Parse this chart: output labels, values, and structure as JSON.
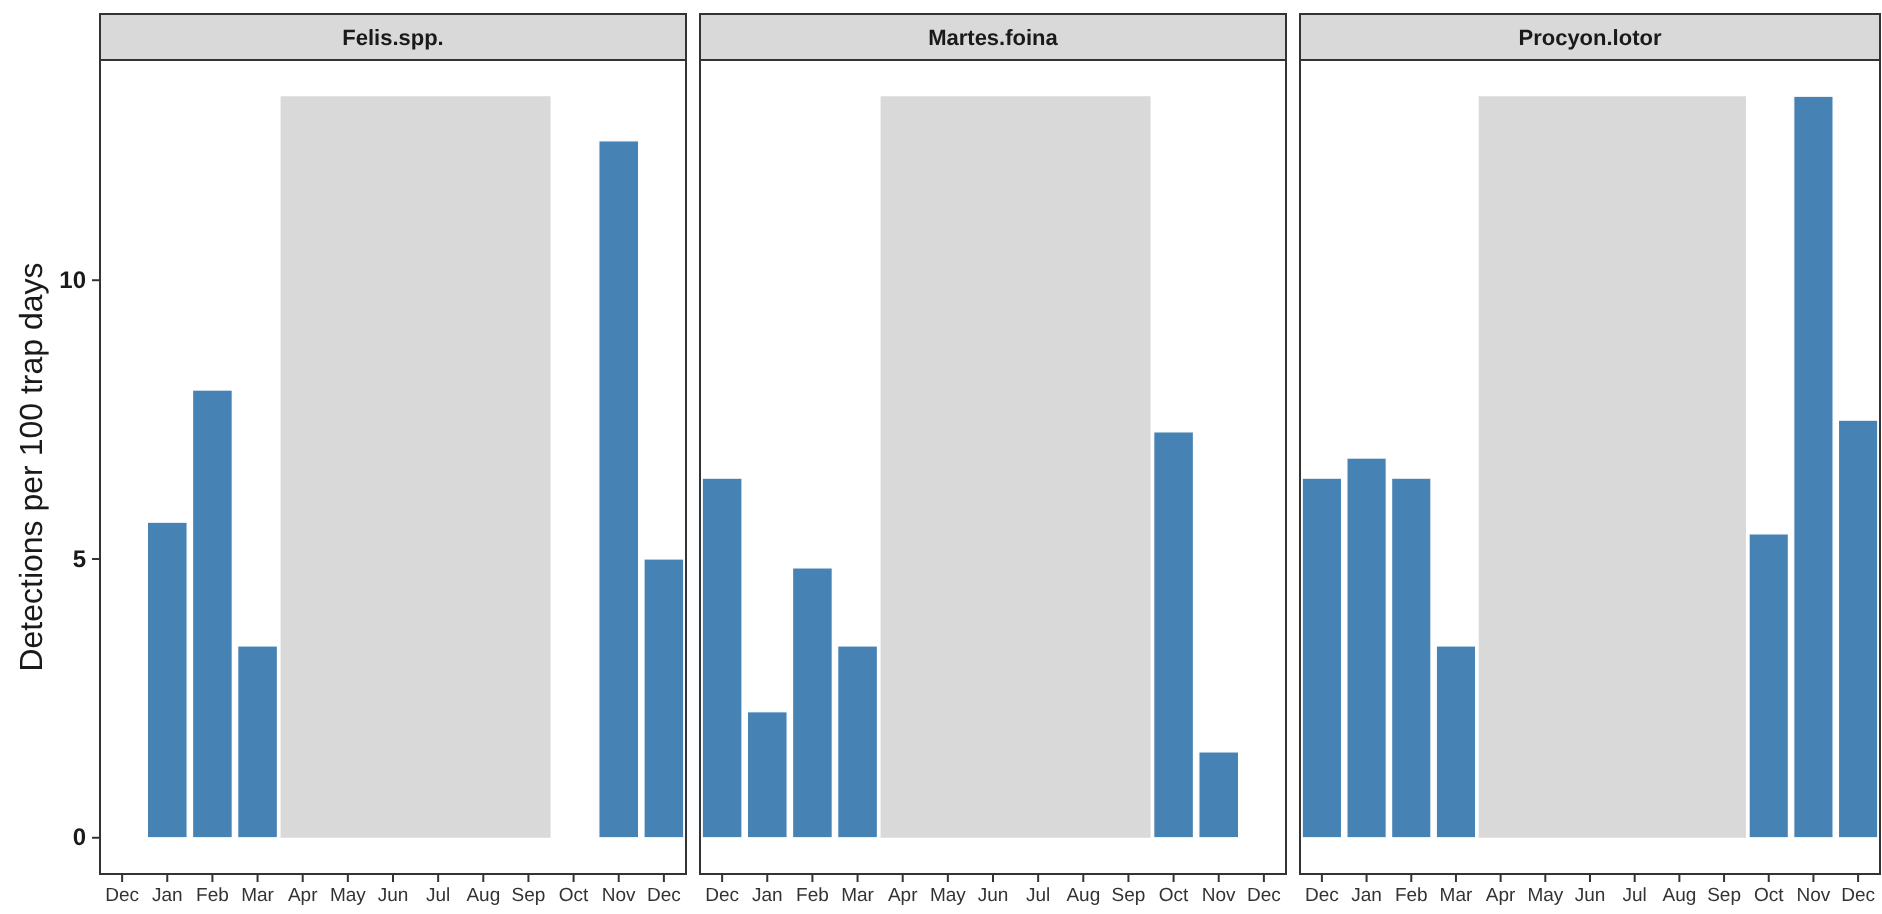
{
  "chart_data": [
    {
      "type": "bar",
      "title": "Felis.spp.",
      "ylabel": "Detections per 100 trap days",
      "categories": [
        "Dec",
        "Jan",
        "Feb",
        "Mar",
        "Apr",
        "May",
        "Jun",
        "Jul",
        "Aug",
        "Sep",
        "Oct",
        "Nov",
        "Dec"
      ],
      "values": [
        null,
        5.66,
        8.03,
        3.44,
        null,
        null,
        null,
        null,
        null,
        null,
        null,
        12.5,
        5.0
      ],
      "color": "#4682b4",
      "ylim": [
        -0.65,
        13.95
      ],
      "yticks": [
        0,
        5,
        10
      ],
      "grid": false,
      "bands": [
        {
          "axis": "x",
          "from": "Apr",
          "to": "Sep",
          "color": "#d9d9d9"
        }
      ]
    },
    {
      "type": "bar",
      "title": "Martes.foina",
      "categories": [
        "Dec",
        "Jan",
        "Feb",
        "Mar",
        "Apr",
        "May",
        "Jun",
        "Jul",
        "Aug",
        "Sep",
        "Oct",
        "Nov",
        "Dec"
      ],
      "values": [
        6.45,
        2.26,
        4.84,
        3.44,
        null,
        null,
        null,
        null,
        null,
        null,
        7.28,
        1.54,
        null
      ],
      "color": "#4682b4",
      "ylim": [
        -0.65,
        13.95
      ],
      "yticks": [
        0,
        5,
        10
      ],
      "tick_labels": "x",
      "grid": false,
      "bands": [
        {
          "axis": "x",
          "from": "Apr",
          "to": "Sep",
          "color": "#d9d9d9"
        }
      ]
    },
    {
      "type": "bar",
      "title": "Procyon.lotor",
      "categories": [
        "Dec",
        "Jan",
        "Feb",
        "Mar",
        "Apr",
        "May",
        "Jun",
        "Jul",
        "Aug",
        "Sep",
        "Oct",
        "Nov",
        "Dec"
      ],
      "values": [
        6.45,
        6.81,
        6.45,
        3.44,
        null,
        null,
        null,
        null,
        null,
        null,
        5.45,
        13.3,
        7.49
      ],
      "color": "#4682b4",
      "ylim": [
        -0.65,
        13.95
      ],
      "yticks": [
        0,
        5,
        10
      ],
      "tick_labels": "x",
      "grid": false,
      "bands": [
        {
          "axis": "x",
          "from": "Apr",
          "to": "Sep",
          "color": "#d9d9d9"
        }
      ]
    }
  ]
}
